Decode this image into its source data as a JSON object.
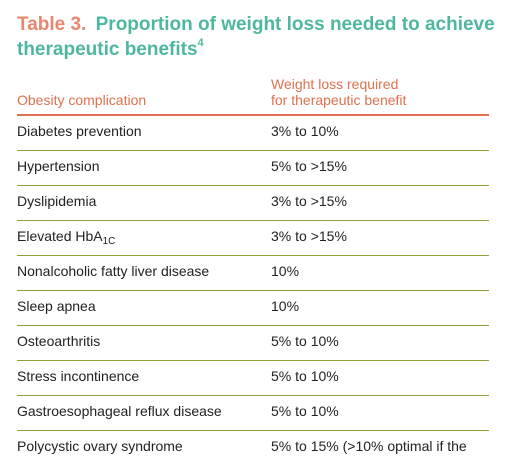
{
  "table": {
    "number": "Table 3.",
    "title": "Proportion of weight loss needed to achieve therapeutic benefits",
    "ref": "4",
    "headers": {
      "complication": "Obesity complication",
      "weight_loss_line1": "Weight loss required",
      "weight_loss_line2": "for therapeutic benefit"
    },
    "rows": [
      {
        "complication": "Diabetes prevention",
        "weight_loss": "3% to 10%"
      },
      {
        "complication": "Hypertension",
        "weight_loss": "5% to >15%"
      },
      {
        "complication": "Dyslipidemia",
        "weight_loss": "3% to >15%"
      },
      {
        "complication": "Elevated HbA",
        "complication_sub": "1C",
        "weight_loss": "3% to >15%"
      },
      {
        "complication": "Nonalcoholic fatty liver disease",
        "weight_loss": "10%"
      },
      {
        "complication": "Sleep apnea",
        "weight_loss": "10%"
      },
      {
        "complication": "Osteoarthritis",
        "weight_loss": "5% to 10%"
      },
      {
        "complication": "Stress incontinence",
        "weight_loss": "5% to 10%"
      },
      {
        "complication": "Gastroesophageal reflux disease",
        "weight_loss": "5% to 10%"
      },
      {
        "complication": "Polycystic ovary syndrome",
        "weight_loss": "5% to 15% (>10% optimal if the"
      }
    ]
  }
}
